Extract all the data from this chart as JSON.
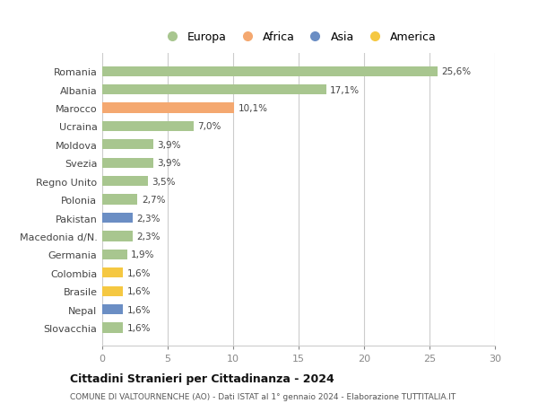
{
  "categories": [
    "Romania",
    "Albania",
    "Marocco",
    "Ucraina",
    "Moldova",
    "Svezia",
    "Regno Unito",
    "Polonia",
    "Pakistan",
    "Macedonia d/N.",
    "Germania",
    "Colombia",
    "Brasile",
    "Nepal",
    "Slovacchia"
  ],
  "values": [
    25.6,
    17.1,
    10.1,
    7.0,
    3.9,
    3.9,
    3.5,
    2.7,
    2.3,
    2.3,
    1.9,
    1.6,
    1.6,
    1.6,
    1.6
  ],
  "labels": [
    "25,6%",
    "17,1%",
    "10,1%",
    "7,0%",
    "3,9%",
    "3,9%",
    "3,5%",
    "2,7%",
    "2,3%",
    "2,3%",
    "1,9%",
    "1,6%",
    "1,6%",
    "1,6%",
    "1,6%"
  ],
  "continents": [
    "Europa",
    "Europa",
    "Africa",
    "Europa",
    "Europa",
    "Europa",
    "Europa",
    "Europa",
    "Asia",
    "Europa",
    "Europa",
    "America",
    "America",
    "Asia",
    "Europa"
  ],
  "continent_colors": {
    "Europa": "#a8c68f",
    "Africa": "#f4a870",
    "Asia": "#6b8ec4",
    "America": "#f5c842"
  },
  "legend_items": [
    "Europa",
    "Africa",
    "Asia",
    "America"
  ],
  "title": "Cittadini Stranieri per Cittadinanza - 2024",
  "subtitle": "COMUNE DI VALTOURNENCHE (AO) - Dati ISTAT al 1° gennaio 2024 - Elaborazione TUTTITALIA.IT",
  "xlim": [
    0,
    30
  ],
  "xticks": [
    0,
    5,
    10,
    15,
    20,
    25,
    30
  ],
  "background_color": "#ffffff",
  "grid_color": "#cccccc",
  "bar_height": 0.55
}
